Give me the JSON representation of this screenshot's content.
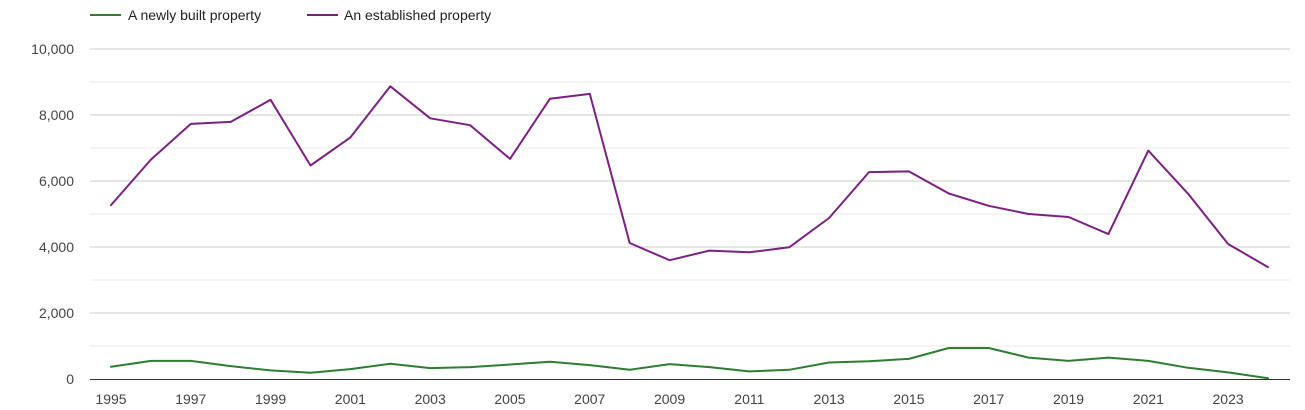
{
  "chart_data": {
    "type": "line",
    "title": "",
    "xlabel": "",
    "ylabel": "",
    "x": [
      1995,
      1996,
      1997,
      1998,
      1999,
      2000,
      2001,
      2002,
      2003,
      2004,
      2005,
      2006,
      2007,
      2008,
      2009,
      2010,
      2011,
      2012,
      2013,
      2014,
      2015,
      2016,
      2017,
      2018,
      2019,
      2020,
      2021,
      2022,
      2023,
      2024
    ],
    "x_tick_labels": [
      "1995",
      "1997",
      "1999",
      "2001",
      "2003",
      "2005",
      "2007",
      "2009",
      "2011",
      "2013",
      "2015",
      "2017",
      "2019",
      "2021",
      "2023"
    ],
    "y_tick_labels": [
      "0",
      "2,000",
      "4,000",
      "6,000",
      "8,000",
      "10,000"
    ],
    "ylim": [
      0,
      10000
    ],
    "grid": true,
    "legend_position": "top-left",
    "series": [
      {
        "name": "A newly built property",
        "color": "#2e7d32",
        "values": [
          370,
          550,
          550,
          390,
          260,
          190,
          300,
          460,
          330,
          360,
          440,
          520,
          420,
          280,
          450,
          360,
          230,
          280,
          500,
          540,
          610,
          940,
          940,
          650,
          550,
          650,
          550,
          340,
          200,
          20
        ]
      },
      {
        "name": "An established property",
        "color": "#7b2181",
        "values": [
          5270,
          6650,
          7730,
          7790,
          8460,
          6470,
          7320,
          8870,
          7900,
          7690,
          6670,
          8490,
          8640,
          4120,
          3600,
          3890,
          3840,
          3990,
          4880,
          6270,
          6290,
          5620,
          5250,
          5000,
          4910,
          4390,
          6920,
          5610,
          4090,
          3390
        ]
      }
    ]
  }
}
